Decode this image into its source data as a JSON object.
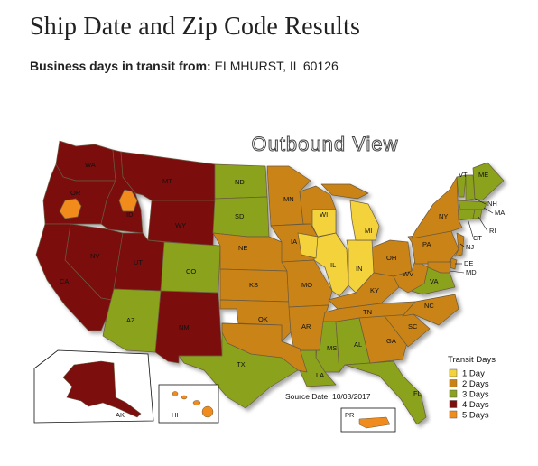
{
  "header": {
    "title": "Ship Date and Zip Code Results",
    "origin_label": "Business days in transit from:",
    "origin_value": "ELMHURST, IL 60126"
  },
  "map": {
    "view_title": "Outbound View",
    "source_date": "Source Date: 10/03/2017",
    "legend": {
      "title": "Transit Days",
      "items": [
        {
          "label": "1 Day",
          "color": "#f4d23a"
        },
        {
          "label": "2 Days",
          "color": "#c98314"
        },
        {
          "label": "3 Days",
          "color": "#8aa21e"
        },
        {
          "label": "4 Days",
          "color": "#7c0e0e"
        },
        {
          "label": "5 Days",
          "color": "#f08b1e"
        }
      ]
    },
    "labels": {
      "wa": "WA",
      "or": "OR",
      "id": "ID",
      "mt": "MT",
      "wy": "WY",
      "nv": "NV",
      "ut": "UT",
      "ca": "CA",
      "az": "AZ",
      "nm": "NM",
      "co": "CO",
      "nd": "ND",
      "sd": "SD",
      "ne": "NE",
      "ks": "KS",
      "ok": "OK",
      "tx": "TX",
      "mn": "MN",
      "ia": "IA",
      "mo": "MO",
      "ar": "AR",
      "la": "LA",
      "wi": "WI",
      "il": "IL",
      "mi": "MI",
      "in": "IN",
      "oh": "OH",
      "ky": "KY",
      "tn": "TN",
      "ms": "MS",
      "al": "AL",
      "ga": "GA",
      "fl": "FL",
      "sc": "SC",
      "nc": "NC",
      "va": "VA",
      "wv": "WV",
      "pa": "PA",
      "ny": "NY",
      "vt": "VT",
      "me": "ME",
      "nh": "NH",
      "ma": "MA",
      "ri": "RI",
      "ct": "CT",
      "nj": "NJ",
      "de": "DE",
      "md": "MD",
      "ak": "AK",
      "hi": "HI",
      "pr": "PR"
    }
  }
}
